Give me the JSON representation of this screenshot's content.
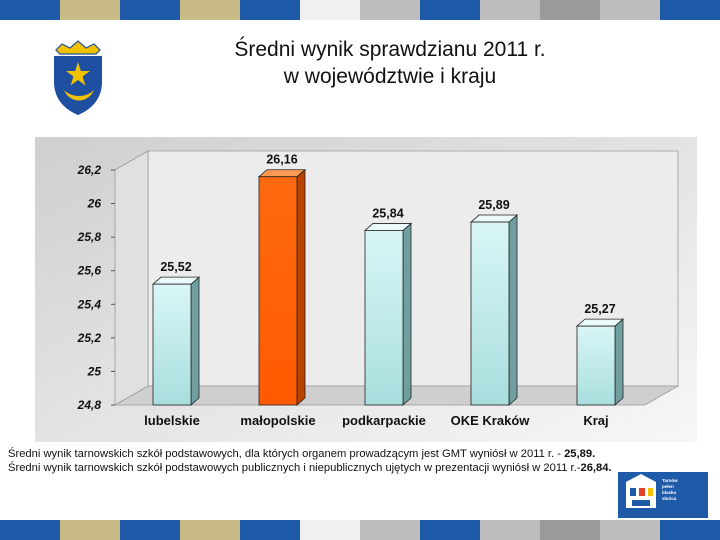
{
  "colors": {
    "strip": [
      "#1e5aa8",
      "#c8bb86",
      "#1e5aa8",
      "#c8bb86",
      "#1e5aa8",
      "#f0f0f0",
      "#bdbdbd",
      "#1e5aa8",
      "#bdbdbd",
      "#9a9a9a",
      "#bdbdbd",
      "#1e5aa8"
    ],
    "bar_default": "#cdeff0",
    "bar_highlight": "#ff6a10",
    "plot_background": "#e6e6e6"
  },
  "icons": {
    "logo": "tarnow-coat-of-arms-icon",
    "badge": "city-badge-icon"
  },
  "title": {
    "line1": "Średni wynik sprawdzianu 2011 r.",
    "line2": "w województwie i kraju"
  },
  "chart_data": {
    "type": "bar",
    "categories": [
      "lubelskie",
      "małopolskie",
      "podkarpackie",
      "OKE Kraków",
      "Kraj"
    ],
    "values": [
      25.52,
      26.16,
      25.84,
      25.89,
      25.27
    ],
    "value_labels": [
      "25,52",
      "26,16",
      "25,84",
      "25,89",
      "25,27"
    ],
    "highlight_index": 1,
    "ylim": [
      24.8,
      26.2
    ],
    "ytick_values": [
      24.8,
      25,
      25.2,
      25.4,
      25.6,
      25.8,
      26,
      26.2
    ],
    "ytick_labels": [
      "24,8",
      "25",
      "25,2",
      "25,4",
      "25,6",
      "25,8",
      "26",
      "26,2"
    ],
    "title": "",
    "xlabel": "",
    "ylabel": "",
    "grid": false,
    "legend": "none"
  },
  "note": {
    "line1_text": "Średni wynik tarnowskich szkół podstawowych, dla których organem prowadzącym jest GMT wyniósł w 2011 r. - ",
    "line1_bold": "25,89.",
    "line2_text": "Średni wynik tarnowskich szkół podstawowych publicznych i niepublicznych ujętych w prezentacji wyniósł w 2011 r.-",
    "line2_bold": "26,84."
  },
  "badge": {
    "lines": [
      "Tarnów",
      "pełen",
      "blasku",
      "słońca"
    ]
  }
}
